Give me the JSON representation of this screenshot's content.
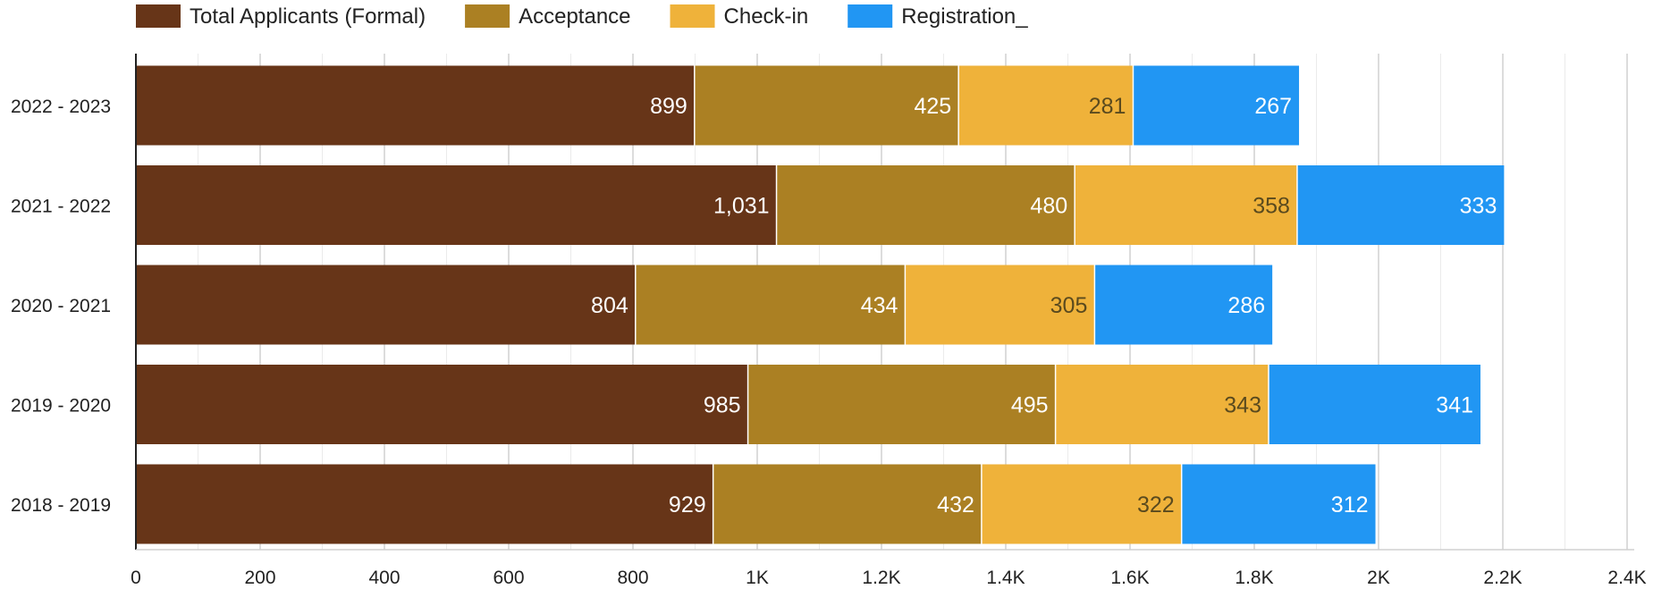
{
  "chart_data": {
    "type": "bar",
    "orientation": "horizontal",
    "stacked": true,
    "categories": [
      "2022 - 2023",
      "2021 - 2022",
      "2020 - 2021",
      "2019 - 2020",
      "2018 - 2019"
    ],
    "series": [
      {
        "name": "Total Applicants (Formal)",
        "color": "#673518",
        "values": [
          899,
          1031,
          804,
          985,
          929
        ],
        "labels": [
          "899",
          "1,031",
          "804",
          "985",
          "929"
        ]
      },
      {
        "name": "Acceptance",
        "color": "#ab8023",
        "values": [
          425,
          480,
          434,
          495,
          432
        ],
        "labels": [
          "425",
          "480",
          "434",
          "495",
          "432"
        ]
      },
      {
        "name": "Check-in",
        "color": "#efb23a",
        "values": [
          281,
          358,
          305,
          343,
          322
        ],
        "labels": [
          "281",
          "358",
          "305",
          "343",
          "322"
        ]
      },
      {
        "name": "Registration_",
        "color": "#2196f3",
        "values": [
          267,
          333,
          286,
          341,
          312
        ],
        "labels": [
          "267",
          "333",
          "286",
          "341",
          "312"
        ]
      }
    ],
    "xlim": [
      0,
      2400
    ],
    "x_ticks": [
      0,
      200,
      400,
      600,
      800,
      1000,
      1200,
      1400,
      1600,
      1800,
      2000,
      2200,
      2400
    ],
    "x_tick_labels": [
      "0",
      "200",
      "400",
      "600",
      "800",
      "1K",
      "1.2K",
      "1.4K",
      "1.6K",
      "1.8K",
      "2K",
      "2.2K",
      "2.4K"
    ],
    "grid": true,
    "legend_position": "top-left",
    "title": "",
    "xlabel": "",
    "ylabel": ""
  }
}
